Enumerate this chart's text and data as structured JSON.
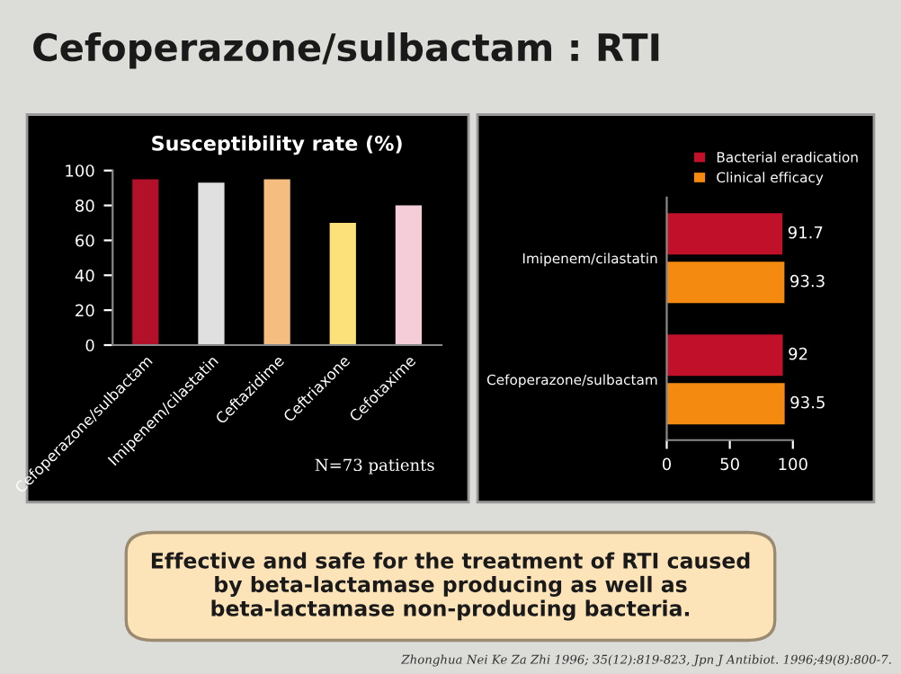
{
  "chart_data": [
    {
      "type": "bar",
      "title": "Susceptibility rate (%)",
      "categories": [
        "Cefoperazone/sulbactam",
        "Imipenem/cilastatin",
        "Ceftazidime",
        "Ceftriaxone",
        "Cefotaxime"
      ],
      "values": [
        95,
        93,
        95,
        70,
        80
      ],
      "colors": [
        "#b3102a",
        "#e0e0e0",
        "#f5bd80",
        "#fce17a",
        "#f5cdd8"
      ],
      "ylim": [
        0,
        100
      ],
      "yticks": [
        0,
        20,
        40,
        60,
        80,
        100
      ],
      "grid": false,
      "annotations": [
        "N=73 patients"
      ]
    },
    {
      "type": "bar",
      "orientation": "horizontal",
      "categories": [
        "Imipenem/cilastatin",
        "Cefoperazone/sulbactam"
      ],
      "series": [
        {
          "name": "Bacterial eradication",
          "color": "#c0102a",
          "values": [
            91.7,
            92
          ]
        },
        {
          "name": "Clinical efficacy",
          "color": "#f58a10",
          "values": [
            93.3,
            93.5
          ]
        }
      ],
      "xlim": [
        0,
        100
      ],
      "xticks": [
        0,
        50,
        100
      ],
      "data_labels": true,
      "legend": "top right",
      "grid": false
    },
    {
      "type": "other",
      "title": "Cefoperazone/sulbactam : RTI",
      "annotations": [
        "Effective and safe for the treatment of RTI caused by beta-lactamase producing as well as beta-lactamase non-producing bacteria.",
        "Zhonghua Nei Ke Za Zhi 1996; 35(12):819-823, Jpn J Antibiot. 1996;49(8):800-7."
      ]
    }
  ]
}
